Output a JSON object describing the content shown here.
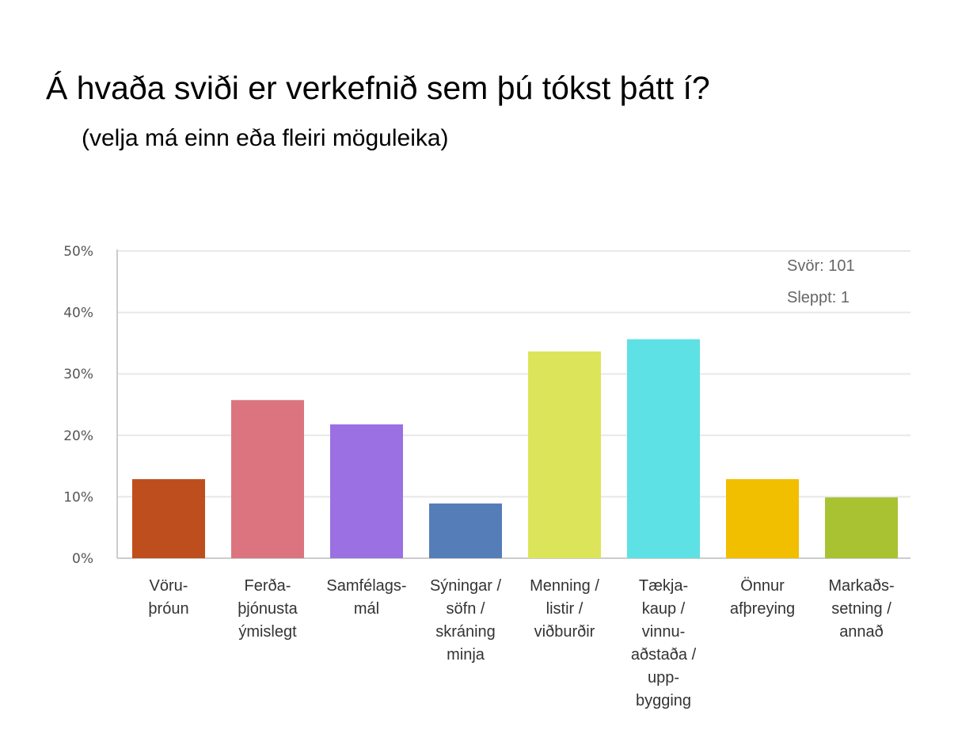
{
  "title": "Á hvaða sviði er verkefnið sem þú tókst þátt í?",
  "subtitle": "(velja má einn eða fleiri möguleika)",
  "chart_data": {
    "type": "bar",
    "title": "Á hvaða sviði er verkefnið sem þú tókst þátt í?",
    "subtitle": "(velja má einn eða fleiri möguleika)",
    "categories": [
      [
        "Vöru-",
        "þróun"
      ],
      [
        "Ferða-",
        "þjónusta",
        "ýmislegt"
      ],
      [
        "Samfélags-",
        "mál"
      ],
      [
        "Sýningar /",
        "söfn /",
        "skráning",
        "minja"
      ],
      [
        "Menning /",
        "listir /",
        "viðburðir"
      ],
      [
        "Tækja-",
        "kaup /",
        "vinnu-",
        "aðstaða /",
        "upp-",
        "bygging"
      ],
      [
        "Önnur",
        "afþreying"
      ],
      [
        "Markaðs-",
        "setning /",
        "annað"
      ]
    ],
    "values": [
      12.87,
      25.74,
      21.78,
      8.91,
      33.66,
      35.64,
      12.87,
      9.9
    ],
    "colors": [
      "#BE4E1D",
      "#DB747E",
      "#9A70E3",
      "#557DB8",
      "#DCE55A",
      "#5DE1E4",
      "#F2BE00",
      "#A9C231"
    ],
    "ylim": [
      0,
      50
    ],
    "yticks": [
      "0%",
      "10%",
      "20%",
      "30%",
      "40%",
      "50%"
    ],
    "grid": true,
    "annotations": [
      "Svör: 101",
      "Sleppt: 1"
    ]
  }
}
